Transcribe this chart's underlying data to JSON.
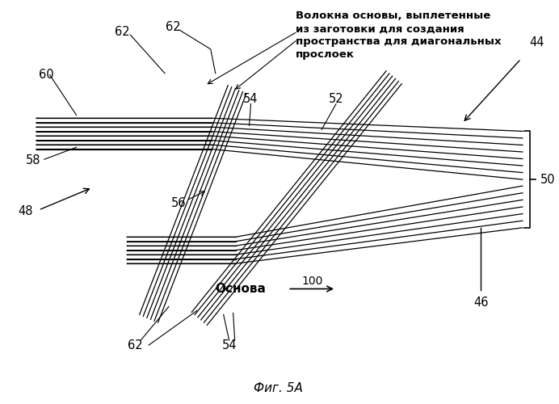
{
  "bg_color": "#ffffff",
  "line_color": "#000000",
  "fig_label": "Фиг. 5А",
  "annotation_text": "Волокна основы, выплетенные\nиз заготовки для создания\nпространства для диагональных\nпрослоек",
  "labels": {
    "62_top1": "62",
    "62_top2": "62",
    "60": "60",
    "58": "58",
    "56": "56",
    "48": "48",
    "62_bot": "62",
    "54_top": "54",
    "52": "52",
    "44": "44",
    "54_bot": "54",
    "100": "100",
    "osnova": "Основа",
    "50": "50",
    "46": "46"
  },
  "num_layers_upper": 8,
  "num_layers_lower": 7,
  "num_layers_diag1": 6,
  "num_layers_diag2": 6,
  "sp_upper": 5.5,
  "sp_lower": 5.5,
  "sp_diag": 5.0
}
